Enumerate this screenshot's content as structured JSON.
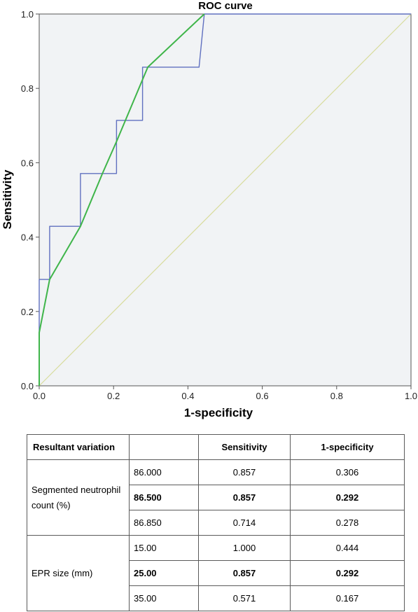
{
  "chart_data": {
    "type": "line",
    "title": "ROC curve",
    "xlabel": "1-specificity",
    "ylabel": "Sensitivity",
    "xlim": [
      0,
      1
    ],
    "ylim": [
      0,
      1
    ],
    "x_ticks": [
      "0.0",
      "0.2",
      "0.4",
      "0.6",
      "0.8",
      "1.0"
    ],
    "y_ticks": [
      "0.0",
      "0.2",
      "0.4",
      "0.6",
      "0.8",
      "1.0"
    ],
    "grid": false,
    "legend": "none",
    "background": "#f1f3f5",
    "series": [
      {
        "color": "#6070c0",
        "style": "step",
        "points": [
          [
            0.0,
            0.0
          ],
          [
            0.0,
            0.143
          ],
          [
            0.0,
            0.286
          ],
          [
            0.028,
            0.286
          ],
          [
            0.028,
            0.429
          ],
          [
            0.111,
            0.429
          ],
          [
            0.111,
            0.571
          ],
          [
            0.208,
            0.571
          ],
          [
            0.208,
            0.714
          ],
          [
            0.278,
            0.714
          ],
          [
            0.278,
            0.857
          ],
          [
            0.292,
            0.857
          ],
          [
            0.43,
            0.857
          ],
          [
            0.444,
            1.0
          ],
          [
            1.0,
            1.0
          ]
        ]
      },
      {
        "color": "#3fb54a",
        "style": "line",
        "points": [
          [
            0.0,
            0.0
          ],
          [
            0.0,
            0.143
          ],
          [
            0.028,
            0.286
          ],
          [
            0.111,
            0.429
          ],
          [
            0.17,
            0.571
          ],
          [
            0.208,
            0.657
          ],
          [
            0.292,
            0.857
          ],
          [
            0.444,
            1.0
          ]
        ]
      },
      {
        "color": "#d8dc9c",
        "style": "line",
        "points": [
          [
            0.0,
            0.0
          ],
          [
            1.0,
            1.0
          ]
        ]
      }
    ]
  },
  "table": {
    "headers": [
      "Resultant variation",
      "",
      "Sensitivity",
      "1-specificity"
    ],
    "groups": [
      {
        "label": "Segmented neutrophil count (%)",
        "rows": [
          {
            "cutoff": "86.000",
            "sensitivity": "0.857",
            "specificity": "0.306",
            "bold": false
          },
          {
            "cutoff": "86.500",
            "sensitivity": "0.857",
            "specificity": "0.292",
            "bold": true
          },
          {
            "cutoff": "86.850",
            "sensitivity": "0.714",
            "specificity": "0.278",
            "bold": false
          }
        ]
      },
      {
        "label": "EPR size (mm)",
        "rows": [
          {
            "cutoff": "15.00",
            "sensitivity": "1.000",
            "specificity": "0.444",
            "bold": false
          },
          {
            "cutoff": "25.00",
            "sensitivity": "0.857",
            "specificity": "0.292",
            "bold": true
          },
          {
            "cutoff": "35.00",
            "sensitivity": "0.571",
            "specificity": "0.167",
            "bold": false
          }
        ]
      }
    ]
  }
}
